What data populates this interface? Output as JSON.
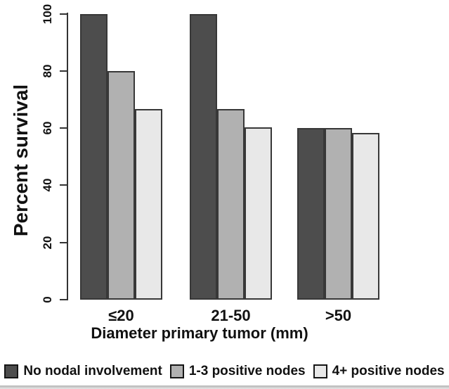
{
  "chart_data": {
    "type": "bar",
    "title": "",
    "categories": [
      "≤20",
      "21-50",
      ">50"
    ],
    "series": [
      {
        "name": "No nodal involvement",
        "color": "#4d4d4d",
        "values": [
          100,
          100,
          60
        ]
      },
      {
        "name": "1-3 positive nodes",
        "color": "#b1b1b1",
        "values": [
          80,
          66.7,
          60
        ]
      },
      {
        "name": "4+ positive nodes",
        "color": "#e8e8e8",
        "values": [
          66.7,
          60.3,
          58.3
        ]
      }
    ],
    "xlabel": "Diameter primary tumor (mm)",
    "ylabel": "Percent survival",
    "ylim": [
      0,
      100
    ],
    "yticks": [
      0,
      20,
      40,
      60,
      80,
      100
    ],
    "grid": false,
    "legend_position": "bottom",
    "bar_border_color": "#383838",
    "axis_color": "#333333"
  }
}
